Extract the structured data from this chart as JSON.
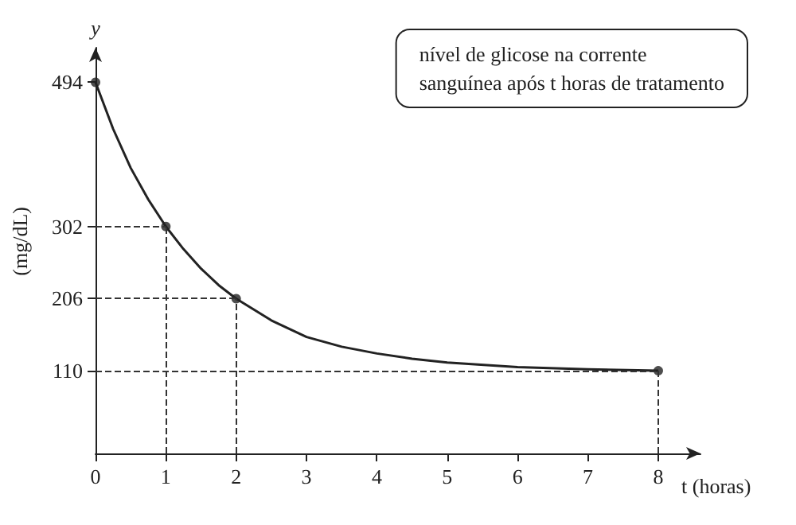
{
  "chart_data": {
    "type": "line",
    "xlabel": "t (horas)",
    "ylabel": "y",
    "annotations": [
      "nível de glicose na corrente sanguínea após t horas de tratamento",
      "(mg/dL)"
    ],
    "series": [
      {
        "color": "#222222",
        "marker": "none",
        "x": [
          0,
          0.25,
          0.5,
          0.75,
          1,
          1.25,
          1.5,
          1.75,
          2,
          2.5,
          3,
          3.5,
          4,
          4.5,
          5,
          6,
          7,
          8
        ],
        "values": [
          494,
          432,
          380,
          338,
          302,
          272,
          246,
          224,
          206,
          177,
          155,
          142,
          133,
          126,
          121,
          115,
          112,
          110
        ]
      },
      {
        "type": "scatter",
        "color": "#222222",
        "marker": "circle",
        "x": [
          0,
          1,
          2,
          8
        ],
        "values": [
          494,
          302,
          206,
          110
        ]
      }
    ],
    "ref_lines": [
      {
        "axis": "x",
        "value": 1,
        "line_style": "dashed"
      },
      {
        "axis": "x",
        "value": 2,
        "line_style": "dashed"
      },
      {
        "axis": "x",
        "value": 8,
        "line_style": "dashed"
      },
      {
        "axis": "y",
        "value": 302,
        "line_style": "dashed"
      },
      {
        "axis": "y",
        "value": 206,
        "line_style": "dashed"
      },
      {
        "axis": "y",
        "value": 110,
        "line_style": "dashed"
      }
    ],
    "xlim": [
      0,
      8.6
    ],
    "xticks": [
      0,
      1,
      2,
      3,
      4,
      5,
      6,
      7,
      8
    ],
    "ylim": [
      0,
      540
    ],
    "yticks": [
      110,
      206,
      302,
      494
    ],
    "grid": false
  }
}
